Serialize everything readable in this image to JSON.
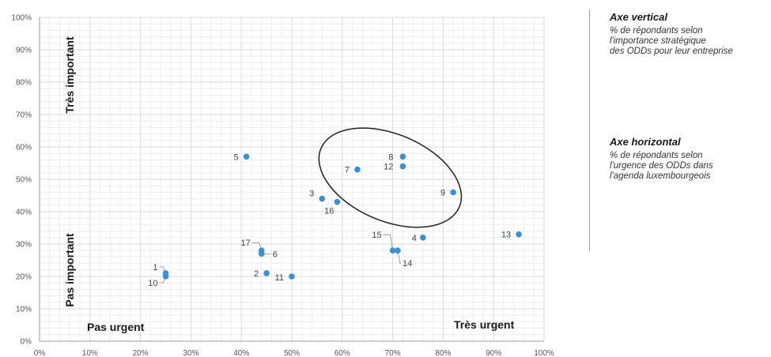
{
  "chart_data": {
    "type": "scatter",
    "title": "",
    "xlabel": "",
    "ylabel": "",
    "xlim": [
      0,
      100
    ],
    "ylim": [
      0,
      100
    ],
    "x_ticks": [
      "0%",
      "10%",
      "20%",
      "30%",
      "40%",
      "50%",
      "60%",
      "70%",
      "80%",
      "90%",
      "100%"
    ],
    "y_ticks": [
      "0%",
      "10%",
      "20%",
      "30%",
      "40%",
      "50%",
      "60%",
      "70%",
      "80%",
      "90%",
      "100%"
    ],
    "grid": true,
    "point_color": "#3d8fd1",
    "points": [
      {
        "label": "1",
        "x": 25,
        "y": 21
      },
      {
        "label": "2",
        "x": 45,
        "y": 21
      },
      {
        "label": "3",
        "x": 56,
        "y": 44
      },
      {
        "label": "4",
        "x": 76,
        "y": 32
      },
      {
        "label": "5",
        "x": 41,
        "y": 57
      },
      {
        "label": "6",
        "x": 44,
        "y": 27
      },
      {
        "label": "7",
        "x": 63,
        "y": 53
      },
      {
        "label": "8",
        "x": 72,
        "y": 57
      },
      {
        "label": "9",
        "x": 82,
        "y": 46
      },
      {
        "label": "10",
        "x": 25,
        "y": 20
      },
      {
        "label": "11",
        "x": 50,
        "y": 20
      },
      {
        "label": "12",
        "x": 72,
        "y": 54
      },
      {
        "label": "13",
        "x": 95,
        "y": 33
      },
      {
        "label": "14",
        "x": 71,
        "y": 28
      },
      {
        "label": "15",
        "x": 70,
        "y": 28
      },
      {
        "label": "16",
        "x": 59,
        "y": 43
      },
      {
        "label": "17",
        "x": 44,
        "y": 28
      }
    ],
    "quadrant_labels": {
      "top_left_vertical": "Très important",
      "bottom_left_vertical": "Pas important",
      "bottom_left": "Pas urgent",
      "bottom_right": "Très urgent"
    },
    "highlight": "ellipse around points 7, 8, 9, 12"
  },
  "legend": {
    "vertical_title": "Axe vertical",
    "vertical_desc": [
      "% de répondants selon",
      "l'importance stratégique",
      "des ODDs pour leur entreprise"
    ],
    "horizontal_title": "Axe horizontal",
    "horizontal_desc": [
      "% de répondants selon",
      "l'urgence des ODDs dans",
      "l'agenda luxembourgeois"
    ]
  }
}
